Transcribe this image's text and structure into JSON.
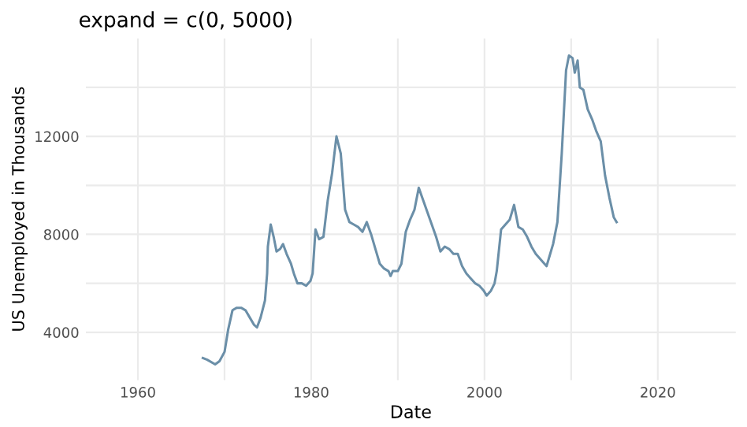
{
  "chart_data": {
    "type": "line",
    "title": "expand = c(0, 5000)",
    "xlabel": "Date",
    "ylabel": "US Unemployed in Thousands",
    "x": [
      "1967-07",
      "1968-01",
      "1968-12",
      "1969-06",
      "1970-01",
      "1970-06",
      "1970-12",
      "1971-06",
      "1971-12",
      "1972-06",
      "1972-12",
      "1973-06",
      "1973-10",
      "1974-03",
      "1974-09",
      "1974-12",
      "1975-01",
      "1975-05",
      "1975-09",
      "1976-01",
      "1976-06",
      "1976-10",
      "1977-03",
      "1977-09",
      "1978-01",
      "1978-06",
      "1978-12",
      "1979-06",
      "1979-12",
      "1980-03",
      "1980-07",
      "1980-12",
      "1981-06",
      "1981-12",
      "1982-06",
      "1982-12",
      "1983-06",
      "1983-12",
      "1984-06",
      "1984-12",
      "1985-06",
      "1985-12",
      "1986-06",
      "1986-12",
      "1987-06",
      "1987-12",
      "1988-06",
      "1988-12",
      "1989-03",
      "1989-06",
      "1990-01",
      "1990-06",
      "1990-12",
      "1991-06",
      "1991-12",
      "1992-06",
      "1992-12",
      "1993-06",
      "1993-12",
      "1994-06",
      "1994-12",
      "1995-06",
      "1995-12",
      "1996-06",
      "1996-12",
      "1997-06",
      "1997-12",
      "1998-06",
      "1998-12",
      "1999-06",
      "1999-12",
      "2000-04",
      "2000-10",
      "2001-03",
      "2001-06",
      "2001-12",
      "2002-06",
      "2002-12",
      "2003-06",
      "2003-12",
      "2004-06",
      "2004-12",
      "2005-06",
      "2005-12",
      "2006-06",
      "2006-12",
      "2007-03",
      "2007-06",
      "2007-12",
      "2008-06",
      "2008-12",
      "2009-06",
      "2009-10",
      "2010-03",
      "2010-06",
      "2010-10",
      "2011-01",
      "2011-06",
      "2011-12",
      "2012-06",
      "2012-12",
      "2013-06",
      "2013-12",
      "2014-06",
      "2014-12",
      "2015-04"
    ],
    "series": [
      {
        "color": "#6b8fa8",
        "values": [
          2950,
          2880,
          2690,
          2820,
          3200,
          4100,
          4900,
          5000,
          5000,
          4900,
          4600,
          4300,
          4200,
          4600,
          5300,
          6400,
          7500,
          8400,
          7900,
          7300,
          7400,
          7600,
          7200,
          6800,
          6400,
          6000,
          6000,
          5900,
          6100,
          6400,
          8200,
          7800,
          7900,
          9400,
          10500,
          12000,
          11300,
          9000,
          8500,
          8400,
          8300,
          8100,
          8500,
          8000,
          7400,
          6800,
          6600,
          6500,
          6300,
          6500,
          6500,
          6800,
          8100,
          8600,
          9000,
          9900,
          9400,
          8900,
          8400,
          7900,
          7300,
          7500,
          7400,
          7200,
          7200,
          6700,
          6400,
          6200,
          6000,
          5900,
          5700,
          5500,
          5700,
          6000,
          6500,
          8200,
          8400,
          8600,
          9200,
          8300,
          8200,
          7900,
          7500,
          7200,
          7000,
          6800,
          6700,
          7000,
          7600,
          8500,
          11300,
          14700,
          15300,
          15200,
          14600,
          15100,
          14000,
          13900,
          13100,
          12700,
          12200,
          11800,
          10400,
          9500,
          8700,
          8500
        ]
      }
    ],
    "xlim": [
      "1954-01-01",
      "2029-01-01"
    ],
    "xticks": [
      {
        "value": "1960-01-01",
        "label": "1960"
      },
      {
        "value": "1970-01-01",
        "label": null
      },
      {
        "value": "1980-01-01",
        "label": "1980"
      },
      {
        "value": "1990-01-01",
        "label": null
      },
      {
        "value": "2000-01-01",
        "label": "2000"
      },
      {
        "value": "2010-01-01",
        "label": null
      },
      {
        "value": "2020-01-01",
        "label": "2020"
      }
    ],
    "ylim": [
      2050,
      16000
    ],
    "yticks": [
      4000,
      {
        "value": 6000,
        "label": null
      },
      8000,
      {
        "value": 10000,
        "label": null
      },
      12000,
      {
        "value": 14000,
        "label": null
      }
    ],
    "grid": true,
    "marker": "none",
    "line_style": "solid"
  }
}
